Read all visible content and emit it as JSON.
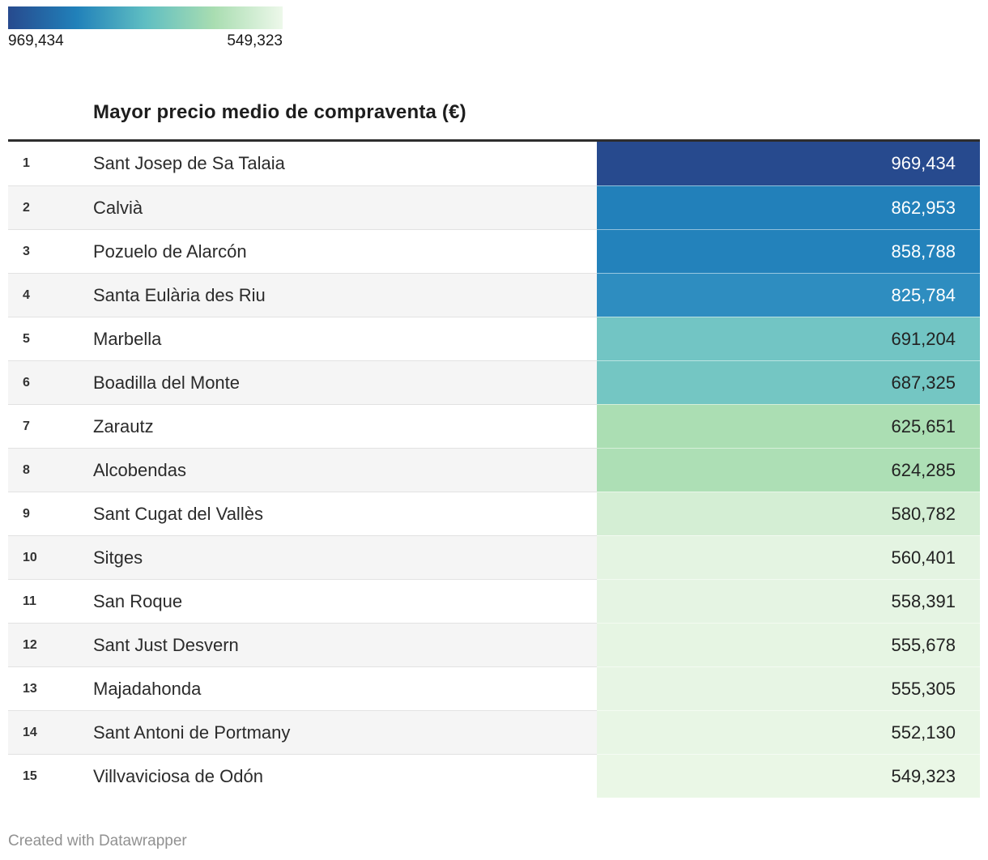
{
  "legend": {
    "max_label": "969,434",
    "min_label": "549,323",
    "gradient_stops": [
      "#274a8e",
      "#2181ba",
      "#5fbec2",
      "#a9ddb1",
      "#edf8ea"
    ]
  },
  "title": "Mayor precio medio de compraventa (€)",
  "footer": {
    "credit": "Created with Datawrapper"
  },
  "chart_data": {
    "type": "table",
    "title": "Mayor precio medio de compraventa (€)",
    "legend_range": [
      969434,
      549323
    ],
    "categories": [
      "Sant Josep de Sa Talaia",
      "Calvià",
      "Pozuelo de Alarcón",
      "Santa Eulària des Riu",
      "Marbella",
      "Boadilla del Monte",
      "Zarautz",
      "Alcobendas",
      "Sant Cugat del Vallès",
      "Sitges",
      "San Roque",
      "Sant Just Desvern",
      "Majadahonda",
      "Sant Antoni de Portmany",
      "Villvaviciosa de Odón"
    ],
    "values": [
      969434,
      862953,
      858788,
      825784,
      691204,
      687325,
      625651,
      624285,
      580782,
      560401,
      558391,
      555678,
      555305,
      552130,
      549323
    ]
  },
  "table": {
    "rows": [
      {
        "rank": "1",
        "name": "Sant Josep de Sa Talaia",
        "value": "969,434",
        "color": "#274a8e",
        "text_color": "#ffffff"
      },
      {
        "rank": "2",
        "name": "Calvià",
        "value": "862,953",
        "color": "#2280ba",
        "text_color": "#ffffff"
      },
      {
        "rank": "3",
        "name": "Pozuelo de Alarcón",
        "value": "858,788",
        "color": "#2382bb",
        "text_color": "#ffffff"
      },
      {
        "rank": "4",
        "name": "Santa Eulària des Riu",
        "value": "825,784",
        "color": "#2e8dc0",
        "text_color": "#ffffff"
      },
      {
        "rank": "5",
        "name": "Marbella",
        "value": "691,204",
        "color": "#72c5c4",
        "text_color": "#222222"
      },
      {
        "rank": "6",
        "name": "Boadilla del Monte",
        "value": "687,325",
        "color": "#74c6c3",
        "text_color": "#222222"
      },
      {
        "rank": "7",
        "name": "Zarautz",
        "value": "625,651",
        "color": "#abdeb3",
        "text_color": "#222222"
      },
      {
        "rank": "8",
        "name": "Alcobendas",
        "value": "624,285",
        "color": "#addfb5",
        "text_color": "#222222"
      },
      {
        "rank": "9",
        "name": "Sant Cugat del Vallès",
        "value": "580,782",
        "color": "#d4eed4",
        "text_color": "#222222"
      },
      {
        "rank": "10",
        "name": "Sitges",
        "value": "560,401",
        "color": "#e4f4e2",
        "text_color": "#222222"
      },
      {
        "rank": "11",
        "name": "San Roque",
        "value": "558,391",
        "color": "#e5f4e3",
        "text_color": "#222222"
      },
      {
        "rank": "12",
        "name": "Sant Just Desvern",
        "value": "555,678",
        "color": "#e6f5e3",
        "text_color": "#222222"
      },
      {
        "rank": "13",
        "name": "Majadahonda",
        "value": "555,305",
        "color": "#e7f5e4",
        "text_color": "#222222"
      },
      {
        "rank": "14",
        "name": "Sant Antoni de Portmany",
        "value": "552,130",
        "color": "#e8f6e5",
        "text_color": "#222222"
      },
      {
        "rank": "15",
        "name": "Villvaviciosa de Odón",
        "value": "549,323",
        "color": "#eaf7e6",
        "text_color": "#222222"
      }
    ]
  }
}
